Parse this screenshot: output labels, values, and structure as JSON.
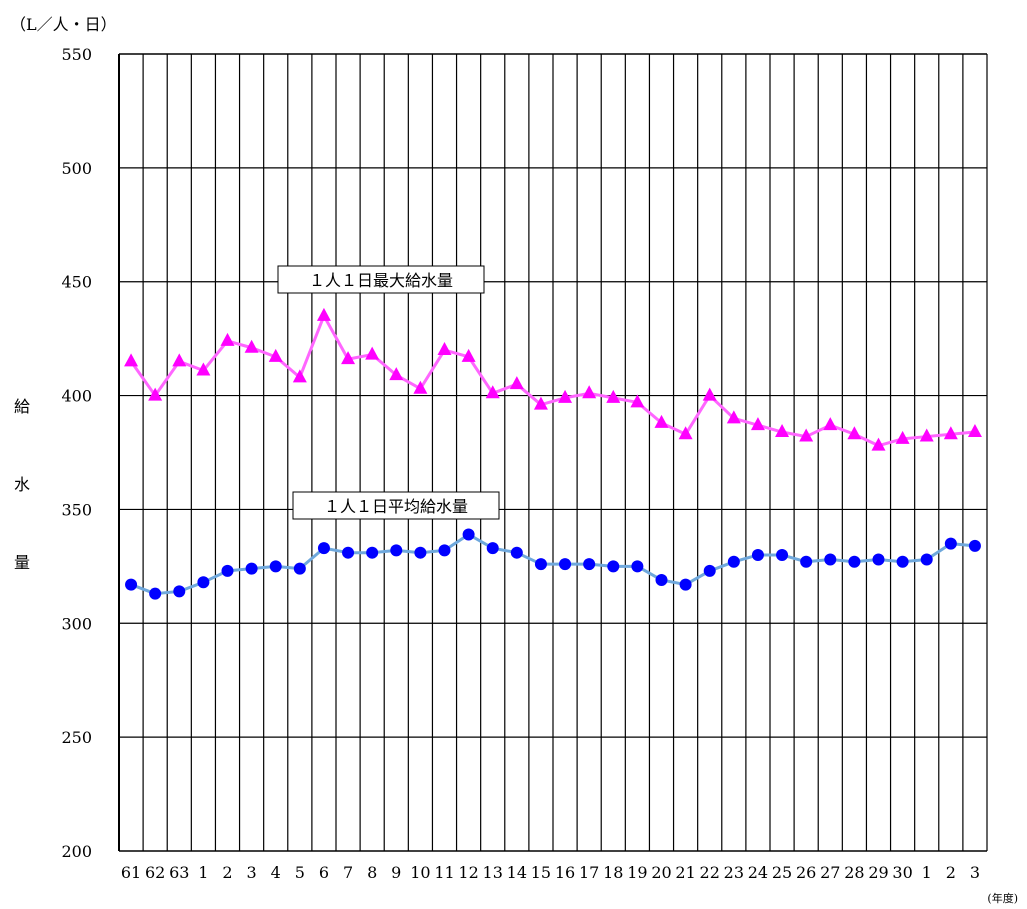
{
  "chart_data": {
    "type": "line",
    "unit_label": "（L／人・日）",
    "ylabel": "給水量",
    "xlabel": "(年度)",
    "ylim": [
      200,
      550
    ],
    "yticks": [
      200,
      250,
      300,
      350,
      400,
      450,
      500,
      550
    ],
    "categories": [
      "61",
      "62",
      "63",
      "1",
      "2",
      "3",
      "4",
      "5",
      "6",
      "7",
      "8",
      "9",
      "10",
      "11",
      "12",
      "13",
      "14",
      "15",
      "16",
      "17",
      "18",
      "19",
      "20",
      "21",
      "22",
      "23",
      "24",
      "25",
      "26",
      "27",
      "28",
      "29",
      "30",
      "1",
      "2",
      "3"
    ],
    "series": [
      {
        "name": "１人１日最大給水量",
        "color": "#ff00ff",
        "line_color": "#ff66ff",
        "marker": "triangle",
        "values": [
          415,
          400,
          415,
          411,
          424,
          421,
          417,
          408,
          435,
          416,
          418,
          409,
          403,
          420,
          417,
          401,
          405,
          396,
          399,
          401,
          399,
          397,
          388,
          383,
          400,
          390,
          387,
          384,
          382,
          387,
          383,
          378,
          381,
          382,
          383,
          384
        ]
      },
      {
        "name": "１人１日平均給水量",
        "color": "#0000ff",
        "line_color": "#6fa8dc",
        "marker": "circle",
        "values": [
          317,
          313,
          314,
          318,
          323,
          324,
          325,
          324,
          333,
          331,
          331,
          332,
          331,
          332,
          339,
          333,
          331,
          326,
          326,
          326,
          325,
          325,
          319,
          317,
          323,
          327,
          330,
          330,
          327,
          328,
          327,
          328,
          327,
          328,
          335,
          334
        ]
      }
    ]
  }
}
